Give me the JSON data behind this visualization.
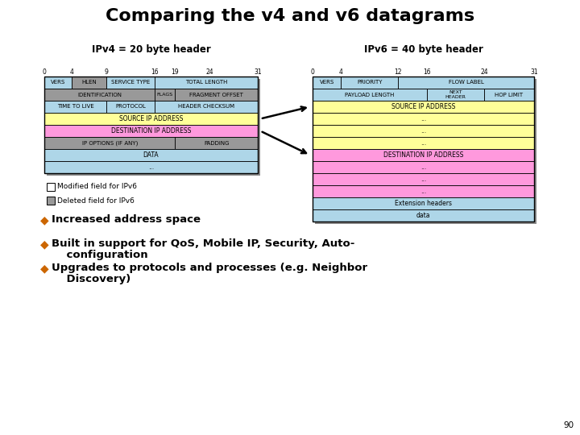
{
  "title": "Comparing the v4 and v6 datagrams",
  "title_fontsize": 16,
  "background_color": "#ffffff",
  "ipv4_label": "IPv4 = 20 byte header",
  "ipv6_label": "IPv6 = 40 byte header",
  "bullet_color": "#cc6600",
  "colors": {
    "light_blue": "#aed6e8",
    "yellow": "#ffff99",
    "pink": "#ff99dd",
    "gray": "#999999",
    "white": "#ffffff",
    "border": "#000000",
    "shadow": "#888888"
  },
  "page_number": "90",
  "ipv4_ticks": [
    0,
    4,
    9,
    16,
    19,
    24,
    31
  ],
  "ipv4_tick_labels": [
    "0",
    "4",
    "9",
    "16",
    "19",
    "24",
    "31"
  ],
  "ipv6_ticks": [
    0,
    4,
    12,
    16,
    24,
    31
  ],
  "ipv6_tick_labels": [
    "0",
    "4",
    "12",
    "16",
    "24",
    "31"
  ]
}
